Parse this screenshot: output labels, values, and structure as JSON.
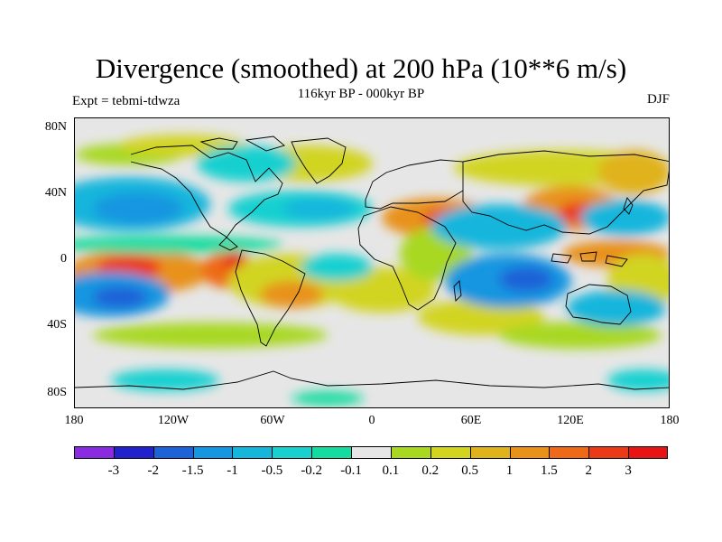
{
  "title": "Divergence (smoothed) at 200 hPa (10**6 m/s)",
  "subtitle": "116kyr BP - 000kyr BP",
  "experiment": "Expt = tebmi-tdwza",
  "season": "DJF",
  "colors": {
    "background": "#ffffff",
    "neutral": "#e6e6e6",
    "coast": "#000000"
  },
  "lat_labels": [
    "80N",
    "40N",
    "0",
    "40S",
    "80S"
  ],
  "lon_labels": [
    "180",
    "120W",
    "60W",
    "0",
    "60E",
    "120E",
    "180"
  ],
  "colorbar": {
    "colors": [
      "#8a2be2",
      "#2222cc",
      "#1e62d8",
      "#1596e0",
      "#16b6dc",
      "#18d0d0",
      "#14dca0",
      "#e6e6e6",
      "#a8d820",
      "#d2d420",
      "#e0b21c",
      "#e8921a",
      "#ee6a18",
      "#ec3a16",
      "#e81414"
    ],
    "labels": [
      "-3",
      "-2",
      "-1.5",
      "-1",
      "-0.5",
      "-0.2",
      "-0.1",
      "0.1",
      "0.2",
      "0.5",
      "1",
      "1.5",
      "2",
      "3"
    ]
  }
}
